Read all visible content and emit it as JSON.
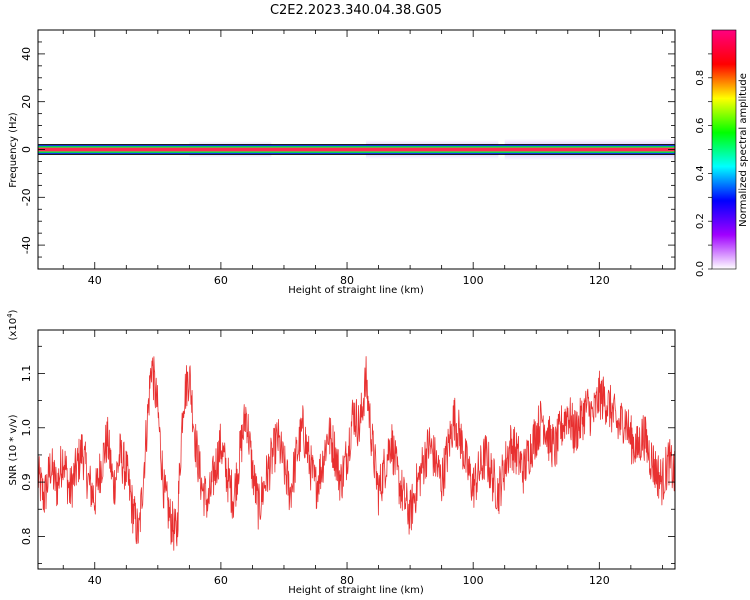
{
  "title": "C2E2.2023.340.04.38.G05",
  "chart_data": [
    {
      "type": "heatmap",
      "xlabel": "Height of straight line (km)",
      "ylabel": "Frequency (Hz)",
      "xlim": [
        31,
        132
      ],
      "ylim": [
        -50,
        50
      ],
      "x_ticks": [
        "40",
        "60",
        "80",
        "100",
        "120"
      ],
      "y_ticks": [
        "40",
        "20",
        "0",
        "-20",
        "-40"
      ],
      "colorbar": {
        "label": "Normalized spectral amplitude",
        "range": [
          0,
          1
        ],
        "ticks": [
          "0.0",
          "0.2",
          "0.4",
          "0.6",
          "0.8"
        ],
        "colors": [
          "#ffffff",
          "#a000ff",
          "#0000ff",
          "#00ffff",
          "#00ff00",
          "#ffff00",
          "#ff0000",
          "#ff0080"
        ]
      },
      "band": {
        "center_hz": 0,
        "core_halfwidth_hz": 1,
        "spread_segments": [
          {
            "x0": 36,
            "x1": 40,
            "halfwidth_hz": 2
          },
          {
            "x0": 55,
            "x1": 68,
            "halfwidth_hz": 3.5
          },
          {
            "x0": 68,
            "x1": 75,
            "halfwidth_hz": 2.5
          },
          {
            "x0": 83,
            "x1": 104,
            "halfwidth_hz": 4
          },
          {
            "x0": 105,
            "x1": 132,
            "halfwidth_hz": 4.5
          }
        ]
      }
    },
    {
      "type": "line",
      "xlabel": "Height of straight line (km)",
      "ylabel": "SNR (10 * v/v)",
      "scale_label": "(x10",
      "scale_exp": "4",
      "scale_close": ")",
      "xlim": [
        31,
        132
      ],
      "ylim": [
        0.74,
        1.18
      ],
      "x_ticks": [
        "40",
        "60",
        "80",
        "100",
        "120"
      ],
      "y_ticks": [
        "0.8",
        "0.9",
        "1.0",
        "1.1"
      ],
      "series": [
        {
          "color": "#e83030",
          "x": [
            31,
            32,
            33,
            34,
            35,
            36,
            37,
            38,
            39,
            40,
            41,
            42,
            43,
            44,
            45,
            46,
            47,
            48,
            49,
            50,
            51,
            52,
            53,
            54,
            55,
            56,
            57,
            58,
            59,
            60,
            61,
            62,
            63,
            64,
            65,
            66,
            67,
            68,
            69,
            70,
            71,
            72,
            73,
            74,
            75,
            76,
            77,
            78,
            79,
            80,
            81,
            82,
            83,
            84,
            85,
            86,
            87,
            88,
            89,
            90,
            91,
            92,
            93,
            94,
            95,
            96,
            97,
            98,
            99,
            100,
            101,
            102,
            103,
            104,
            105,
            106,
            107,
            108,
            109,
            110,
            111,
            112,
            113,
            114,
            115,
            116,
            117,
            118,
            119,
            120,
            121,
            122,
            123,
            124,
            125,
            126,
            127,
            128,
            129,
            130,
            131,
            132
          ],
          "y": [
            0.91,
            0.87,
            0.93,
            0.89,
            0.95,
            0.88,
            0.92,
            0.96,
            0.9,
            0.87,
            0.93,
            0.98,
            0.89,
            0.95,
            0.92,
            0.85,
            0.8,
            0.96,
            1.12,
            1.03,
            0.88,
            0.83,
            0.8,
            1.05,
            1.1,
            0.97,
            0.89,
            0.86,
            0.92,
            0.97,
            0.91,
            0.87,
            0.95,
            1.03,
            0.92,
            0.85,
            0.9,
            0.94,
            0.98,
            0.93,
            0.88,
            0.95,
            1.0,
            0.94,
            0.89,
            0.93,
            0.99,
            0.96,
            0.9,
            0.95,
            1.03,
            1.0,
            1.09,
            0.97,
            0.88,
            0.93,
            0.98,
            0.91,
            0.87,
            0.84,
            0.89,
            0.93,
            0.97,
            0.94,
            0.9,
            0.96,
            1.02,
            0.98,
            0.93,
            0.89,
            0.92,
            0.95,
            0.91,
            0.88,
            0.93,
            0.97,
            0.95,
            0.92,
            0.96,
            0.99,
            1.02,
            0.98,
            0.96,
            1.0,
            1.03,
            0.99,
            1.01,
            1.04,
            1.02,
            1.06,
            1.05,
            1.03,
            1.0,
            1.02,
            0.98,
            0.96,
            0.99,
            0.95,
            0.92,
            0.9,
            0.94,
            0.91
          ]
        }
      ]
    }
  ]
}
